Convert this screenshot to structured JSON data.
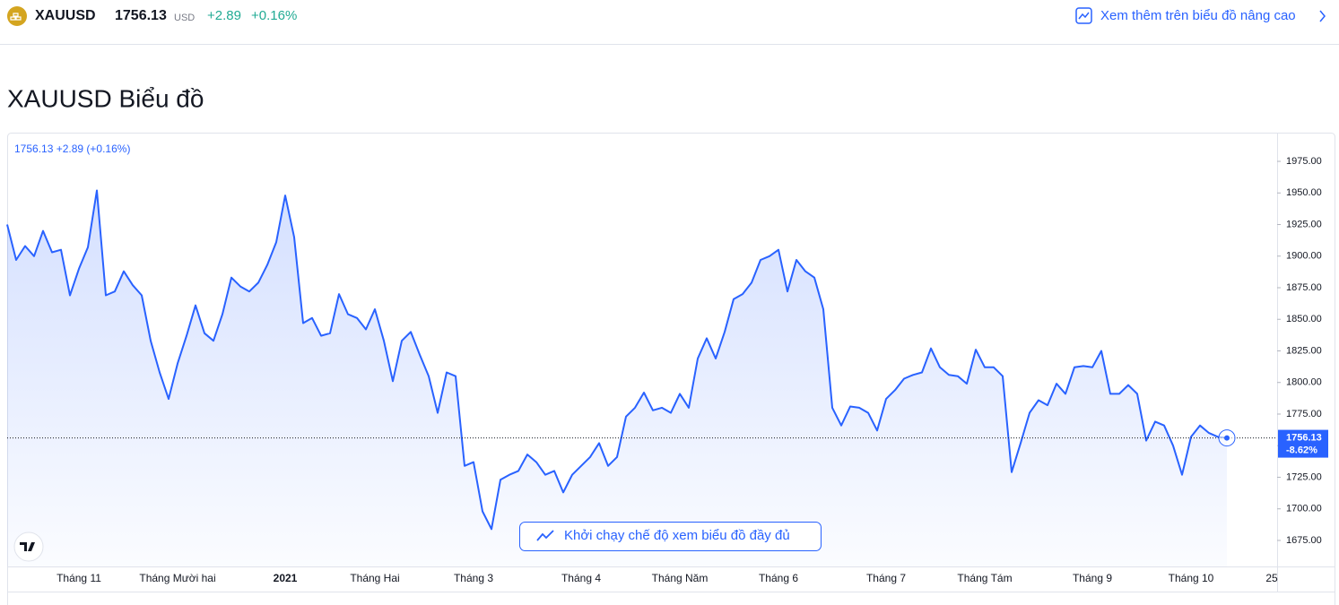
{
  "header": {
    "symbol": "XAUUSD",
    "price": "1756.13",
    "currency": "USD",
    "change": "+2.89",
    "change_percent": "+0.16%",
    "link": "Xem thêm trên biểu đồ nâng cao"
  },
  "page_title": "XAUUSD Biểu đồ",
  "chart_data": {
    "type": "line",
    "legend_text": "1756.13 +2.89 (+0.16%)",
    "button": "Khởi chạy chế độ xem biểu đồ đầy đủ",
    "color": "#2962ff",
    "categories": [
      null,
      null,
      null,
      null,
      null,
      null,
      null,
      null,
      "Tháng 11",
      null,
      null,
      null,
      null,
      null,
      null,
      null,
      null,
      null,
      null,
      "Tháng Mười hai",
      null,
      null,
      null,
      null,
      null,
      null,
      null,
      null,
      null,
      null,
      null,
      "2021",
      null,
      null,
      null,
      null,
      null,
      null,
      null,
      null,
      null,
      "Tháng Hai",
      null,
      null,
      null,
      null,
      null,
      null,
      null,
      null,
      null,
      null,
      "Tháng 3",
      null,
      null,
      null,
      null,
      null,
      null,
      null,
      null,
      null,
      null,
      null,
      "Tháng 4",
      null,
      null,
      null,
      null,
      null,
      null,
      null,
      null,
      null,
      null,
      "Tháng Năm",
      null,
      null,
      null,
      null,
      null,
      null,
      null,
      null,
      null,
      null,
      "Tháng 6",
      null,
      null,
      null,
      null,
      null,
      null,
      null,
      null,
      null,
      null,
      null,
      "Tháng 7",
      null,
      null,
      null,
      null,
      null,
      null,
      null,
      null,
      null,
      null,
      "Tháng Tám",
      null,
      null,
      null,
      null,
      null,
      null,
      null,
      null,
      null,
      null,
      null,
      "Tháng 9",
      null,
      null,
      null,
      null,
      null,
      null,
      null,
      null,
      null,
      null,
      "Tháng 10",
      null,
      null,
      null,
      null,
      null,
      null,
      null,
      null,
      "25"
    ],
    "values": [
      1925,
      1897,
      1908,
      1900,
      1920,
      1903,
      1905,
      1869,
      1890,
      1907,
      1952,
      1869,
      1872,
      1888,
      1877,
      1869,
      1833,
      1808,
      1787,
      1815,
      1837,
      1861,
      1839,
      1833,
      1854,
      1883,
      1876,
      1872,
      1879,
      1893,
      1911,
      1948,
      1915,
      1847,
      1851,
      1837,
      1839,
      1870,
      1854,
      1851,
      1842,
      1858,
      1833,
      1801,
      1833,
      1840,
      1822,
      1805,
      1776,
      1808,
      1805,
      1734,
      1737,
      1698,
      1684,
      1723,
      1727,
      1730,
      1743,
      1737,
      1727,
      1730,
      1713,
      1727,
      1734,
      1741,
      1752,
      1734,
      1741,
      1773,
      1780,
      1792,
      1778,
      1780,
      1776,
      1791,
      1780,
      1819,
      1835,
      1819,
      1840,
      1866,
      1870,
      1879,
      1897,
      1900,
      1905,
      1872,
      1897,
      1888,
      1883,
      1858,
      1780,
      1766,
      1781,
      1780,
      1776,
      1762,
      1787,
      1794,
      1803,
      1806,
      1808,
      1827,
      1812,
      1806,
      1805,
      1799,
      1826,
      1812,
      1812,
      1805,
      1729,
      1752,
      1776,
      1786,
      1782,
      1799,
      1791,
      1812,
      1813,
      1812,
      1825,
      1791,
      1791,
      1798,
      1791,
      1754,
      1769,
      1766,
      1750,
      1727,
      1757,
      1766,
      1760,
      1757,
      1756.13,
      null,
      null,
      null,
      null,
      null
    ],
    "ylim": [
      1654.4,
      1996.3
    ],
    "yticks": [
      {
        "value": 1675,
        "label": "1675.00"
      },
      {
        "value": 1700,
        "label": "1700.00"
      },
      {
        "value": 1725,
        "label": "1725.00"
      },
      {
        "value": 1750,
        "label": "1750.00"
      },
      {
        "value": 1775,
        "label": "1775.00"
      },
      {
        "value": 1800,
        "label": "1800.00"
      },
      {
        "value": 1825,
        "label": "1825.00"
      },
      {
        "value": 1850,
        "label": "1850.00"
      },
      {
        "value": 1875,
        "label": "1875.00"
      },
      {
        "value": 1900,
        "label": "1900.00"
      },
      {
        "value": 1925,
        "label": "1925.00"
      },
      {
        "value": 1950,
        "label": "1950.00"
      },
      {
        "value": 1975,
        "label": "1975.00"
      }
    ],
    "last_price": 1756.13,
    "last_change": "-8.62%"
  }
}
